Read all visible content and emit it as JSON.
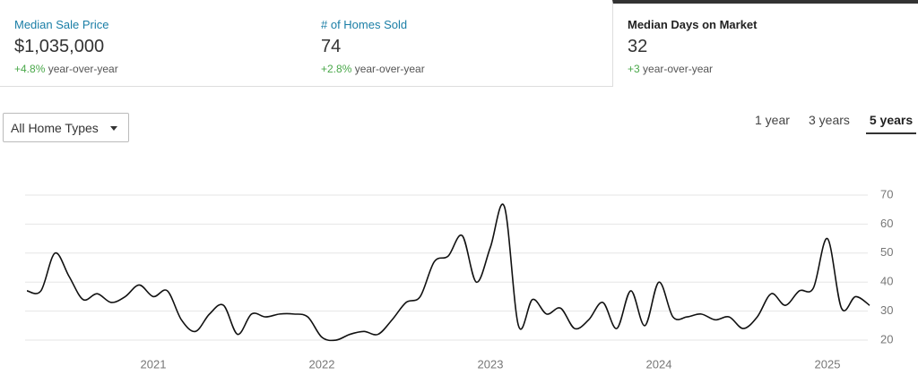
{
  "tabs": [
    {
      "title": "Median Sale Price",
      "value": "$1,035,000",
      "change": "+4.8%",
      "change_text": "year-over-year"
    },
    {
      "title": "# of Homes Sold",
      "value": "74",
      "change": "+2.8%",
      "change_text": "year-over-year"
    },
    {
      "title": "Median Days on Market",
      "value": "32",
      "change": "+3",
      "change_text": "year-over-year"
    }
  ],
  "filter": "All Home Types",
  "ranges": [
    "1 year",
    "3 years",
    "5 years"
  ],
  "chart_data": {
    "type": "line",
    "categories": [
      null,
      null,
      null,
      null,
      null,
      null,
      null,
      null,
      null,
      "2021",
      null,
      null,
      null,
      null,
      null,
      null,
      null,
      null,
      null,
      null,
      null,
      "2022",
      null,
      null,
      null,
      null,
      null,
      null,
      null,
      null,
      null,
      null,
      null,
      "2023",
      null,
      null,
      null,
      null,
      null,
      null,
      null,
      null,
      null,
      null,
      null,
      "2024",
      null,
      null,
      null,
      null,
      null,
      null,
      null,
      null,
      null,
      null,
      null,
      "2025",
      null,
      null,
      null
    ],
    "values": [
      37,
      37,
      50,
      42,
      34,
      36,
      33,
      35,
      39,
      35,
      37,
      27,
      23,
      29,
      32,
      22,
      29,
      28,
      29,
      29,
      28,
      21,
      20,
      22,
      23,
      22,
      27,
      33,
      35,
      47,
      49,
      56,
      40,
      52,
      66,
      25,
      34,
      29,
      31,
      24,
      27,
      33,
      24,
      37,
      25,
      40,
      28,
      28,
      29,
      27,
      28,
      24,
      28,
      36,
      32,
      37,
      38,
      55,
      31,
      35,
      32
    ],
    "color": "#111111",
    "ylim": [
      16,
      72
    ],
    "yticks": [
      20,
      30,
      40,
      50,
      60,
      70
    ],
    "grid": true
  }
}
